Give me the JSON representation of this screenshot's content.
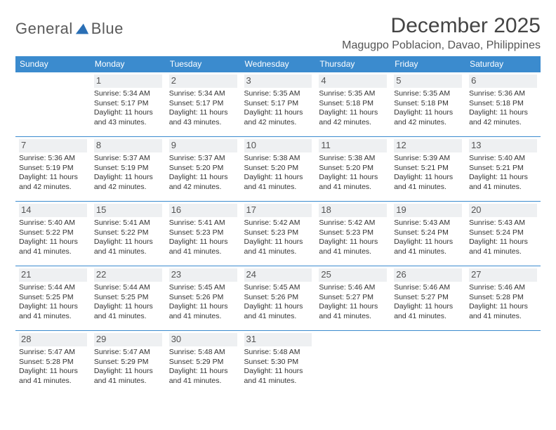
{
  "brand": {
    "word1": "General",
    "word2": "Blue"
  },
  "title": "December 2025",
  "location": "Magugpo Poblacion, Davao, Philippines",
  "colors": {
    "header_bg": "#3b8bce",
    "header_text": "#ffffff",
    "cell_border": "#3b8bce",
    "daynum_bg": "#eef0f2",
    "text": "#333333",
    "brand_gray": "#5a5a5a",
    "brand_blue": "#2a6fb5",
    "background": "#ffffff"
  },
  "typography": {
    "title_fontsize": 30,
    "location_fontsize": 16,
    "dayheader_fontsize": 12,
    "cell_fontsize": 10.5,
    "daynum_fontsize": 13
  },
  "day_headers": [
    "Sunday",
    "Monday",
    "Tuesday",
    "Wednesday",
    "Thursday",
    "Friday",
    "Saturday"
  ],
  "weeks": [
    [
      null,
      {
        "n": "1",
        "sr": "Sunrise: 5:34 AM",
        "ss": "Sunset: 5:17 PM",
        "d1": "Daylight: 11 hours",
        "d2": "and 43 minutes."
      },
      {
        "n": "2",
        "sr": "Sunrise: 5:34 AM",
        "ss": "Sunset: 5:17 PM",
        "d1": "Daylight: 11 hours",
        "d2": "and 43 minutes."
      },
      {
        "n": "3",
        "sr": "Sunrise: 5:35 AM",
        "ss": "Sunset: 5:17 PM",
        "d1": "Daylight: 11 hours",
        "d2": "and 42 minutes."
      },
      {
        "n": "4",
        "sr": "Sunrise: 5:35 AM",
        "ss": "Sunset: 5:18 PM",
        "d1": "Daylight: 11 hours",
        "d2": "and 42 minutes."
      },
      {
        "n": "5",
        "sr": "Sunrise: 5:35 AM",
        "ss": "Sunset: 5:18 PM",
        "d1": "Daylight: 11 hours",
        "d2": "and 42 minutes."
      },
      {
        "n": "6",
        "sr": "Sunrise: 5:36 AM",
        "ss": "Sunset: 5:18 PM",
        "d1": "Daylight: 11 hours",
        "d2": "and 42 minutes."
      }
    ],
    [
      {
        "n": "7",
        "sr": "Sunrise: 5:36 AM",
        "ss": "Sunset: 5:19 PM",
        "d1": "Daylight: 11 hours",
        "d2": "and 42 minutes."
      },
      {
        "n": "8",
        "sr": "Sunrise: 5:37 AM",
        "ss": "Sunset: 5:19 PM",
        "d1": "Daylight: 11 hours",
        "d2": "and 42 minutes."
      },
      {
        "n": "9",
        "sr": "Sunrise: 5:37 AM",
        "ss": "Sunset: 5:20 PM",
        "d1": "Daylight: 11 hours",
        "d2": "and 42 minutes."
      },
      {
        "n": "10",
        "sr": "Sunrise: 5:38 AM",
        "ss": "Sunset: 5:20 PM",
        "d1": "Daylight: 11 hours",
        "d2": "and 41 minutes."
      },
      {
        "n": "11",
        "sr": "Sunrise: 5:38 AM",
        "ss": "Sunset: 5:20 PM",
        "d1": "Daylight: 11 hours",
        "d2": "and 41 minutes."
      },
      {
        "n": "12",
        "sr": "Sunrise: 5:39 AM",
        "ss": "Sunset: 5:21 PM",
        "d1": "Daylight: 11 hours",
        "d2": "and 41 minutes."
      },
      {
        "n": "13",
        "sr": "Sunrise: 5:40 AM",
        "ss": "Sunset: 5:21 PM",
        "d1": "Daylight: 11 hours",
        "d2": "and 41 minutes."
      }
    ],
    [
      {
        "n": "14",
        "sr": "Sunrise: 5:40 AM",
        "ss": "Sunset: 5:22 PM",
        "d1": "Daylight: 11 hours",
        "d2": "and 41 minutes."
      },
      {
        "n": "15",
        "sr": "Sunrise: 5:41 AM",
        "ss": "Sunset: 5:22 PM",
        "d1": "Daylight: 11 hours",
        "d2": "and 41 minutes."
      },
      {
        "n": "16",
        "sr": "Sunrise: 5:41 AM",
        "ss": "Sunset: 5:23 PM",
        "d1": "Daylight: 11 hours",
        "d2": "and 41 minutes."
      },
      {
        "n": "17",
        "sr": "Sunrise: 5:42 AM",
        "ss": "Sunset: 5:23 PM",
        "d1": "Daylight: 11 hours",
        "d2": "and 41 minutes."
      },
      {
        "n": "18",
        "sr": "Sunrise: 5:42 AM",
        "ss": "Sunset: 5:23 PM",
        "d1": "Daylight: 11 hours",
        "d2": "and 41 minutes."
      },
      {
        "n": "19",
        "sr": "Sunrise: 5:43 AM",
        "ss": "Sunset: 5:24 PM",
        "d1": "Daylight: 11 hours",
        "d2": "and 41 minutes."
      },
      {
        "n": "20",
        "sr": "Sunrise: 5:43 AM",
        "ss": "Sunset: 5:24 PM",
        "d1": "Daylight: 11 hours",
        "d2": "and 41 minutes."
      }
    ],
    [
      {
        "n": "21",
        "sr": "Sunrise: 5:44 AM",
        "ss": "Sunset: 5:25 PM",
        "d1": "Daylight: 11 hours",
        "d2": "and 41 minutes."
      },
      {
        "n": "22",
        "sr": "Sunrise: 5:44 AM",
        "ss": "Sunset: 5:25 PM",
        "d1": "Daylight: 11 hours",
        "d2": "and 41 minutes."
      },
      {
        "n": "23",
        "sr": "Sunrise: 5:45 AM",
        "ss": "Sunset: 5:26 PM",
        "d1": "Daylight: 11 hours",
        "d2": "and 41 minutes."
      },
      {
        "n": "24",
        "sr": "Sunrise: 5:45 AM",
        "ss": "Sunset: 5:26 PM",
        "d1": "Daylight: 11 hours",
        "d2": "and 41 minutes."
      },
      {
        "n": "25",
        "sr": "Sunrise: 5:46 AM",
        "ss": "Sunset: 5:27 PM",
        "d1": "Daylight: 11 hours",
        "d2": "and 41 minutes."
      },
      {
        "n": "26",
        "sr": "Sunrise: 5:46 AM",
        "ss": "Sunset: 5:27 PM",
        "d1": "Daylight: 11 hours",
        "d2": "and 41 minutes."
      },
      {
        "n": "27",
        "sr": "Sunrise: 5:46 AM",
        "ss": "Sunset: 5:28 PM",
        "d1": "Daylight: 11 hours",
        "d2": "and 41 minutes."
      }
    ],
    [
      {
        "n": "28",
        "sr": "Sunrise: 5:47 AM",
        "ss": "Sunset: 5:28 PM",
        "d1": "Daylight: 11 hours",
        "d2": "and 41 minutes."
      },
      {
        "n": "29",
        "sr": "Sunrise: 5:47 AM",
        "ss": "Sunset: 5:29 PM",
        "d1": "Daylight: 11 hours",
        "d2": "and 41 minutes."
      },
      {
        "n": "30",
        "sr": "Sunrise: 5:48 AM",
        "ss": "Sunset: 5:29 PM",
        "d1": "Daylight: 11 hours",
        "d2": "and 41 minutes."
      },
      {
        "n": "31",
        "sr": "Sunrise: 5:48 AM",
        "ss": "Sunset: 5:30 PM",
        "d1": "Daylight: 11 hours",
        "d2": "and 41 minutes."
      },
      null,
      null,
      null
    ]
  ]
}
